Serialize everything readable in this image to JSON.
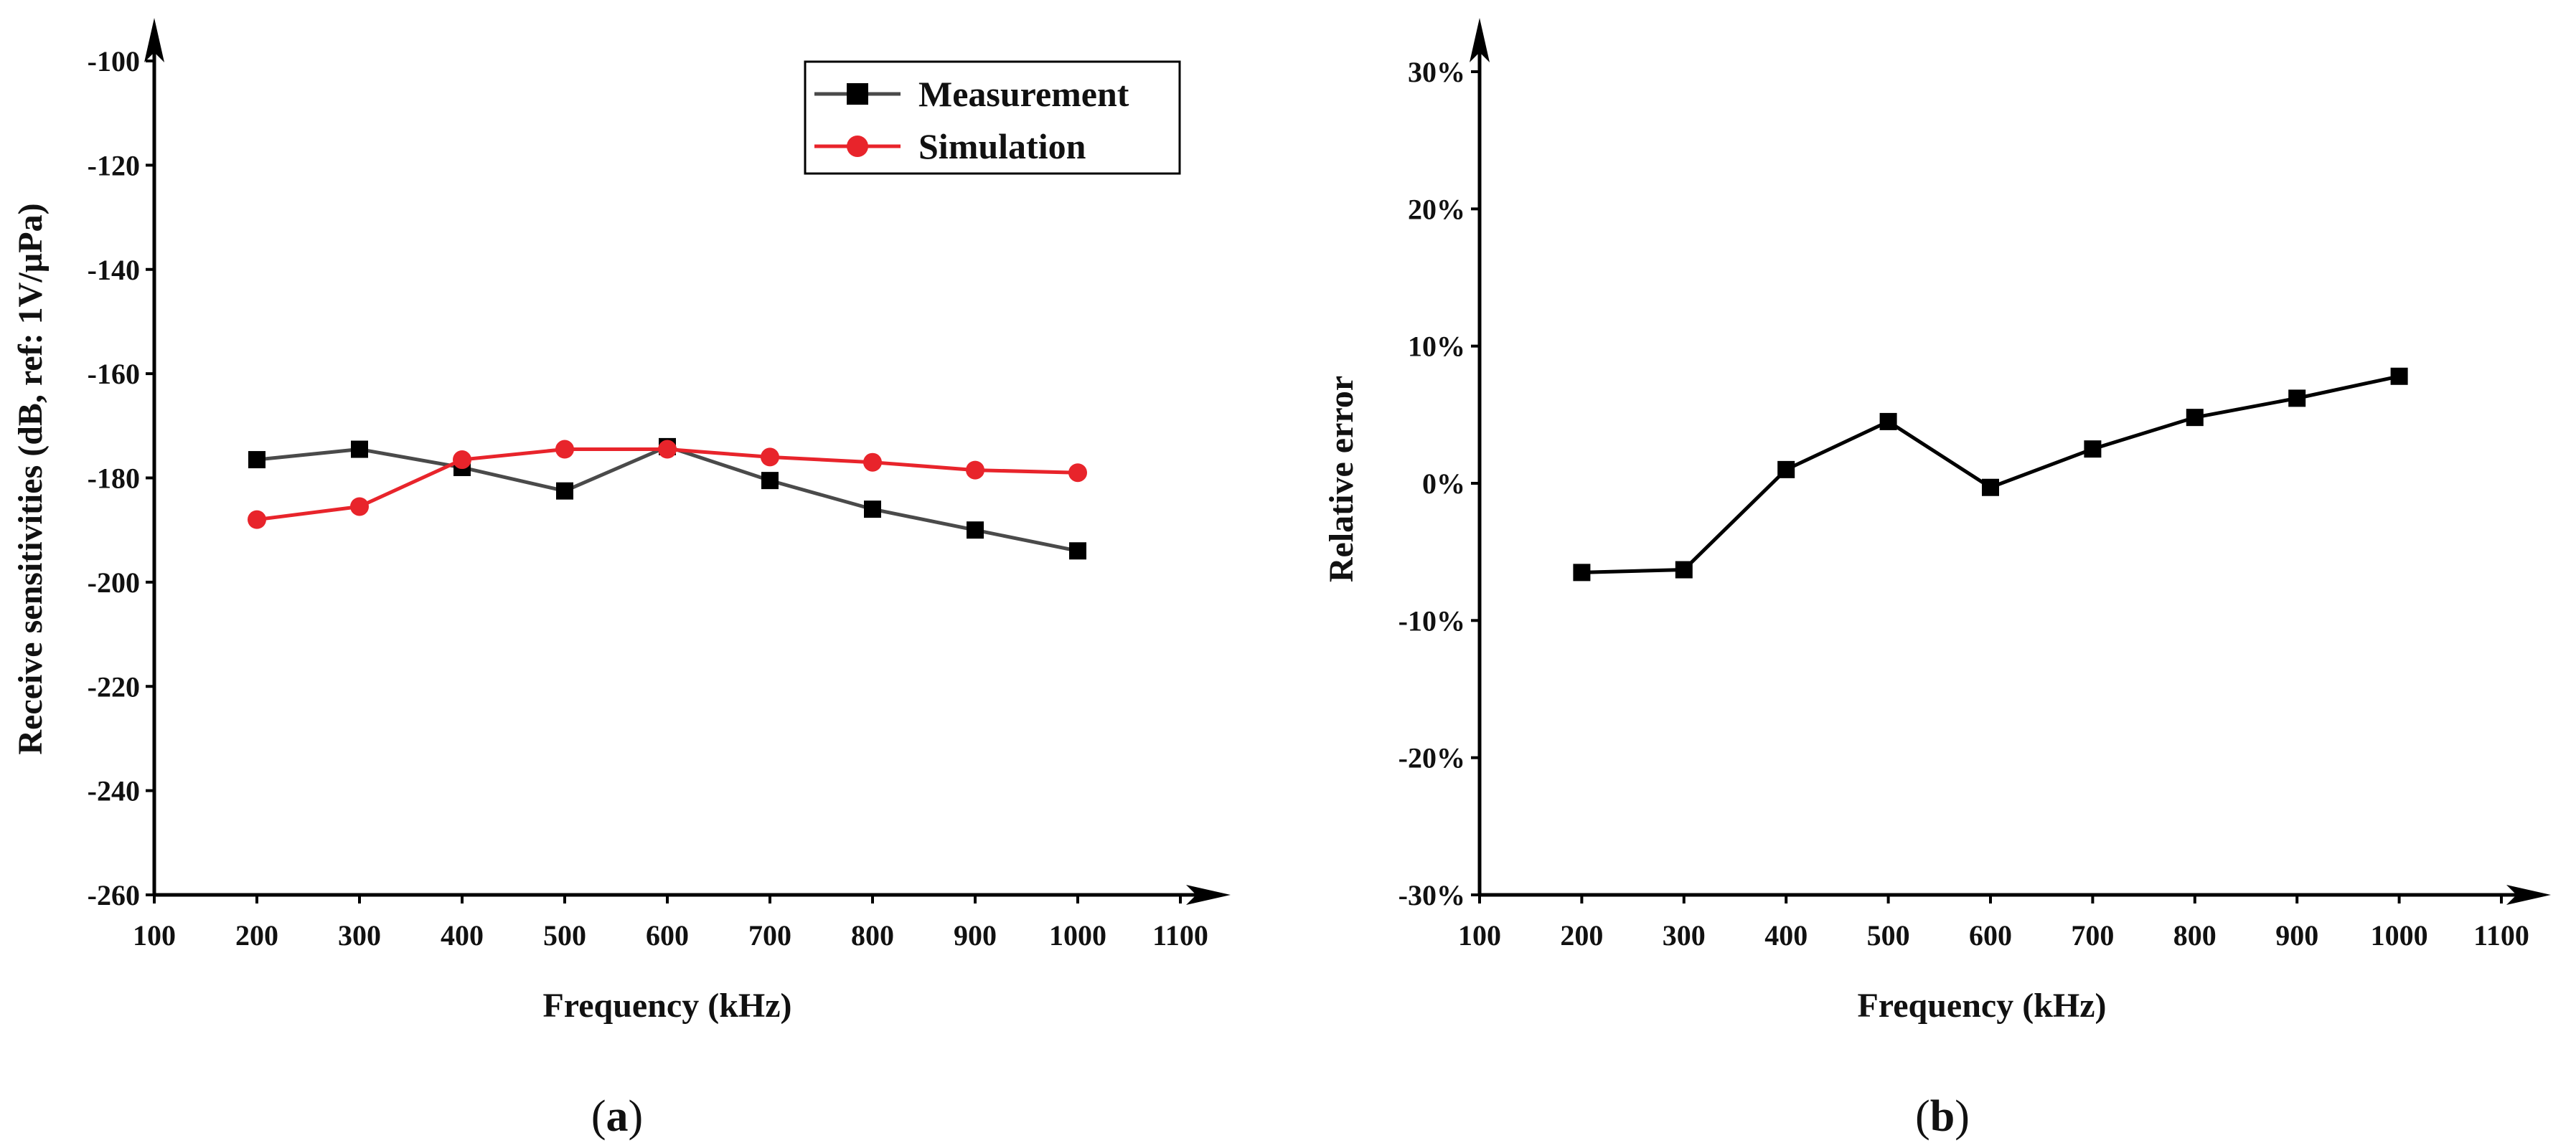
{
  "chart_data": [
    {
      "type": "line",
      "caption": "a",
      "caption_open": "(",
      "caption_close": ")",
      "xlabel": "Frequency (kHz)",
      "ylabel": "Receive sensitivities (dB, ref: 1V/µPa)",
      "xlim": [
        100,
        1100
      ],
      "ylim": [
        -260,
        -100
      ],
      "xticks": [
        100,
        200,
        300,
        400,
        500,
        600,
        700,
        800,
        900,
        1000,
        1100
      ],
      "yticks": [
        -260,
        -240,
        -220,
        -200,
        -180,
        -160,
        -140,
        -120,
        -100
      ],
      "ytick_labels": [
        "-260",
        "-240",
        "-220",
        "-200",
        "-180",
        "-160",
        "-140",
        "-120",
        "-100"
      ],
      "grid": false,
      "legend_position": "top-right",
      "x": [
        200,
        300,
        400,
        500,
        600,
        700,
        800,
        900,
        1000
      ],
      "series": [
        {
          "name": "Measurement",
          "color": "#4a4a4a",
          "marker_color": "#000000",
          "marker": "square",
          "values": [
            -176.5,
            -174.5,
            -178,
            -182.5,
            -174,
            -180.5,
            -186,
            -190,
            -194
          ]
        },
        {
          "name": "Simulation",
          "color": "#e8242b",
          "marker_color": "#e8242b",
          "marker": "circle",
          "values": [
            -188,
            -185.5,
            -176.5,
            -174.5,
            -174.5,
            -176,
            -177,
            -178.5,
            -179
          ]
        }
      ]
    },
    {
      "type": "line",
      "caption": "b",
      "caption_open": "(",
      "caption_close": ")",
      "xlabel": "Frequency (kHz)",
      "ylabel": "Relative error",
      "xlim": [
        100,
        1100
      ],
      "ylim": [
        -30,
        30
      ],
      "xticks": [
        100,
        200,
        300,
        400,
        500,
        600,
        700,
        800,
        900,
        1000,
        1100
      ],
      "yticks": [
        -30,
        -20,
        -10,
        0,
        10,
        20,
        30
      ],
      "ytick_labels": [
        "-30%",
        "-20%",
        "-10%",
        "0%",
        "10%",
        "20%",
        "30%"
      ],
      "grid": false,
      "x": [
        200,
        300,
        400,
        500,
        600,
        700,
        800,
        900,
        1000
      ],
      "series": [
        {
          "name": "Relative error",
          "color": "#000000",
          "marker_color": "#000000",
          "marker": "square",
          "values": [
            -6.5,
            -6.3,
            1,
            4.5,
            -0.3,
            2.5,
            4.8,
            6.2,
            7.8
          ]
        }
      ]
    }
  ]
}
